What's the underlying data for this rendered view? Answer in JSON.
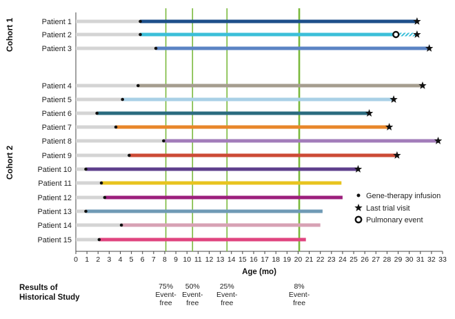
{
  "chart_data": {
    "type": "swimmer",
    "xlabel": "Age (mo)",
    "xlim": [
      0,
      33
    ],
    "xticks": [
      0,
      1,
      2,
      3,
      4,
      5,
      6,
      7,
      8,
      9,
      10,
      11,
      12,
      13,
      14,
      15,
      16,
      17,
      18,
      19,
      20,
      21,
      22,
      23,
      24,
      25,
      26,
      27,
      28,
      29,
      30,
      31,
      32,
      33
    ],
    "cohorts": [
      {
        "label": "Cohort 1",
        "patients": [
          "Patient 1",
          "Patient 2",
          "Patient 3"
        ]
      },
      {
        "label": "Cohort 2",
        "patients": [
          "Patient 4",
          "Patient 5",
          "Patient 6",
          "Patient 7",
          "Patient 8",
          "Patient 9",
          "Patient 10",
          "Patient 11",
          "Patient 12",
          "Patient 13",
          "Patient 14",
          "Patient 15"
        ]
      }
    ],
    "patients": [
      {
        "name": "Patient 1",
        "cohort": 1,
        "infusion": 5.8,
        "end": 30.7,
        "last_visit": true,
        "pulmonary_event": null,
        "color": "#1d4f8a"
      },
      {
        "name": "Patient 2",
        "cohort": 1,
        "infusion": 5.8,
        "end": 30.7,
        "last_visit": true,
        "pulmonary_event": 28.8,
        "color": "#3bbfd9"
      },
      {
        "name": "Patient 3",
        "cohort": 1,
        "infusion": 7.2,
        "end": 31.8,
        "last_visit": true,
        "pulmonary_event": null,
        "color": "#5b84c4"
      },
      {
        "name": "Patient 4",
        "cohort": 2,
        "infusion": 5.6,
        "end": 31.2,
        "last_visit": true,
        "pulmonary_event": null,
        "color": "#a59d8f"
      },
      {
        "name": "Patient 5",
        "cohort": 2,
        "infusion": 4.2,
        "end": 28.6,
        "last_visit": true,
        "pulmonary_event": null,
        "color": "#a9d0e6"
      },
      {
        "name": "Patient 6",
        "cohort": 2,
        "infusion": 1.9,
        "end": 26.4,
        "last_visit": true,
        "pulmonary_event": null,
        "color": "#2b6b7f"
      },
      {
        "name": "Patient 7",
        "cohort": 2,
        "infusion": 3.6,
        "end": 28.2,
        "last_visit": true,
        "pulmonary_event": null,
        "color": "#e8862a"
      },
      {
        "name": "Patient 8",
        "cohort": 2,
        "infusion": 7.9,
        "end": 32.6,
        "last_visit": true,
        "pulmonary_event": null,
        "color": "#a27cba"
      },
      {
        "name": "Patient 9",
        "cohort": 2,
        "infusion": 4.8,
        "end": 28.9,
        "last_visit": true,
        "pulmonary_event": null,
        "color": "#cc4b36"
      },
      {
        "name": "Patient 10",
        "cohort": 2,
        "infusion": 0.9,
        "end": 25.4,
        "last_visit": true,
        "pulmonary_event": null,
        "color": "#5e3f8c"
      },
      {
        "name": "Patient 11",
        "cohort": 2,
        "infusion": 2.3,
        "end": 23.9,
        "last_visit": false,
        "pulmonary_event": null,
        "color": "#e8c41f"
      },
      {
        "name": "Patient 12",
        "cohort": 2,
        "infusion": 2.6,
        "end": 24.0,
        "last_visit": false,
        "pulmonary_event": null,
        "color": "#9c1f7c"
      },
      {
        "name": "Patient 13",
        "cohort": 2,
        "infusion": 0.9,
        "end": 22.2,
        "last_visit": false,
        "pulmonary_event": null,
        "color": "#6f9ab5"
      },
      {
        "name": "Patient 14",
        "cohort": 2,
        "infusion": 4.1,
        "end": 22.0,
        "last_visit": false,
        "pulmonary_event": null,
        "color": "#d7a1b4"
      },
      {
        "name": "Patient 15",
        "cohort": 2,
        "infusion": 2.1,
        "end": 20.7,
        "last_visit": false,
        "pulmonary_event": null,
        "color": "#e0457f"
      }
    ],
    "reference_lines": [
      {
        "x": 8.1,
        "label_top": "75%",
        "label_mid": "Event-",
        "label_bot": "free",
        "emphasis": false
      },
      {
        "x": 10.5,
        "label_top": "50%",
        "label_mid": "Event-",
        "label_bot": "free",
        "emphasis": false
      },
      {
        "x": 13.6,
        "label_top": "25%",
        "label_mid": "Event-",
        "label_bot": "free",
        "emphasis": false
      },
      {
        "x": 20.1,
        "label_top": "8%",
        "label_mid": "Event-",
        "label_bot": "free",
        "emphasis": true
      }
    ],
    "legend": [
      {
        "symbol": "dot",
        "label": "Gene-therapy infusion"
      },
      {
        "symbol": "star",
        "label": "Last trial visit"
      },
      {
        "symbol": "circle",
        "label": "Pulmonary event"
      }
    ],
    "legend_position": "bottom-right",
    "pre_infusion_color": "#d4d4d4",
    "reference_line_color": "#79b93b"
  },
  "historical": {
    "label_line1": "Results of",
    "label_line2": "Historical Study"
  }
}
